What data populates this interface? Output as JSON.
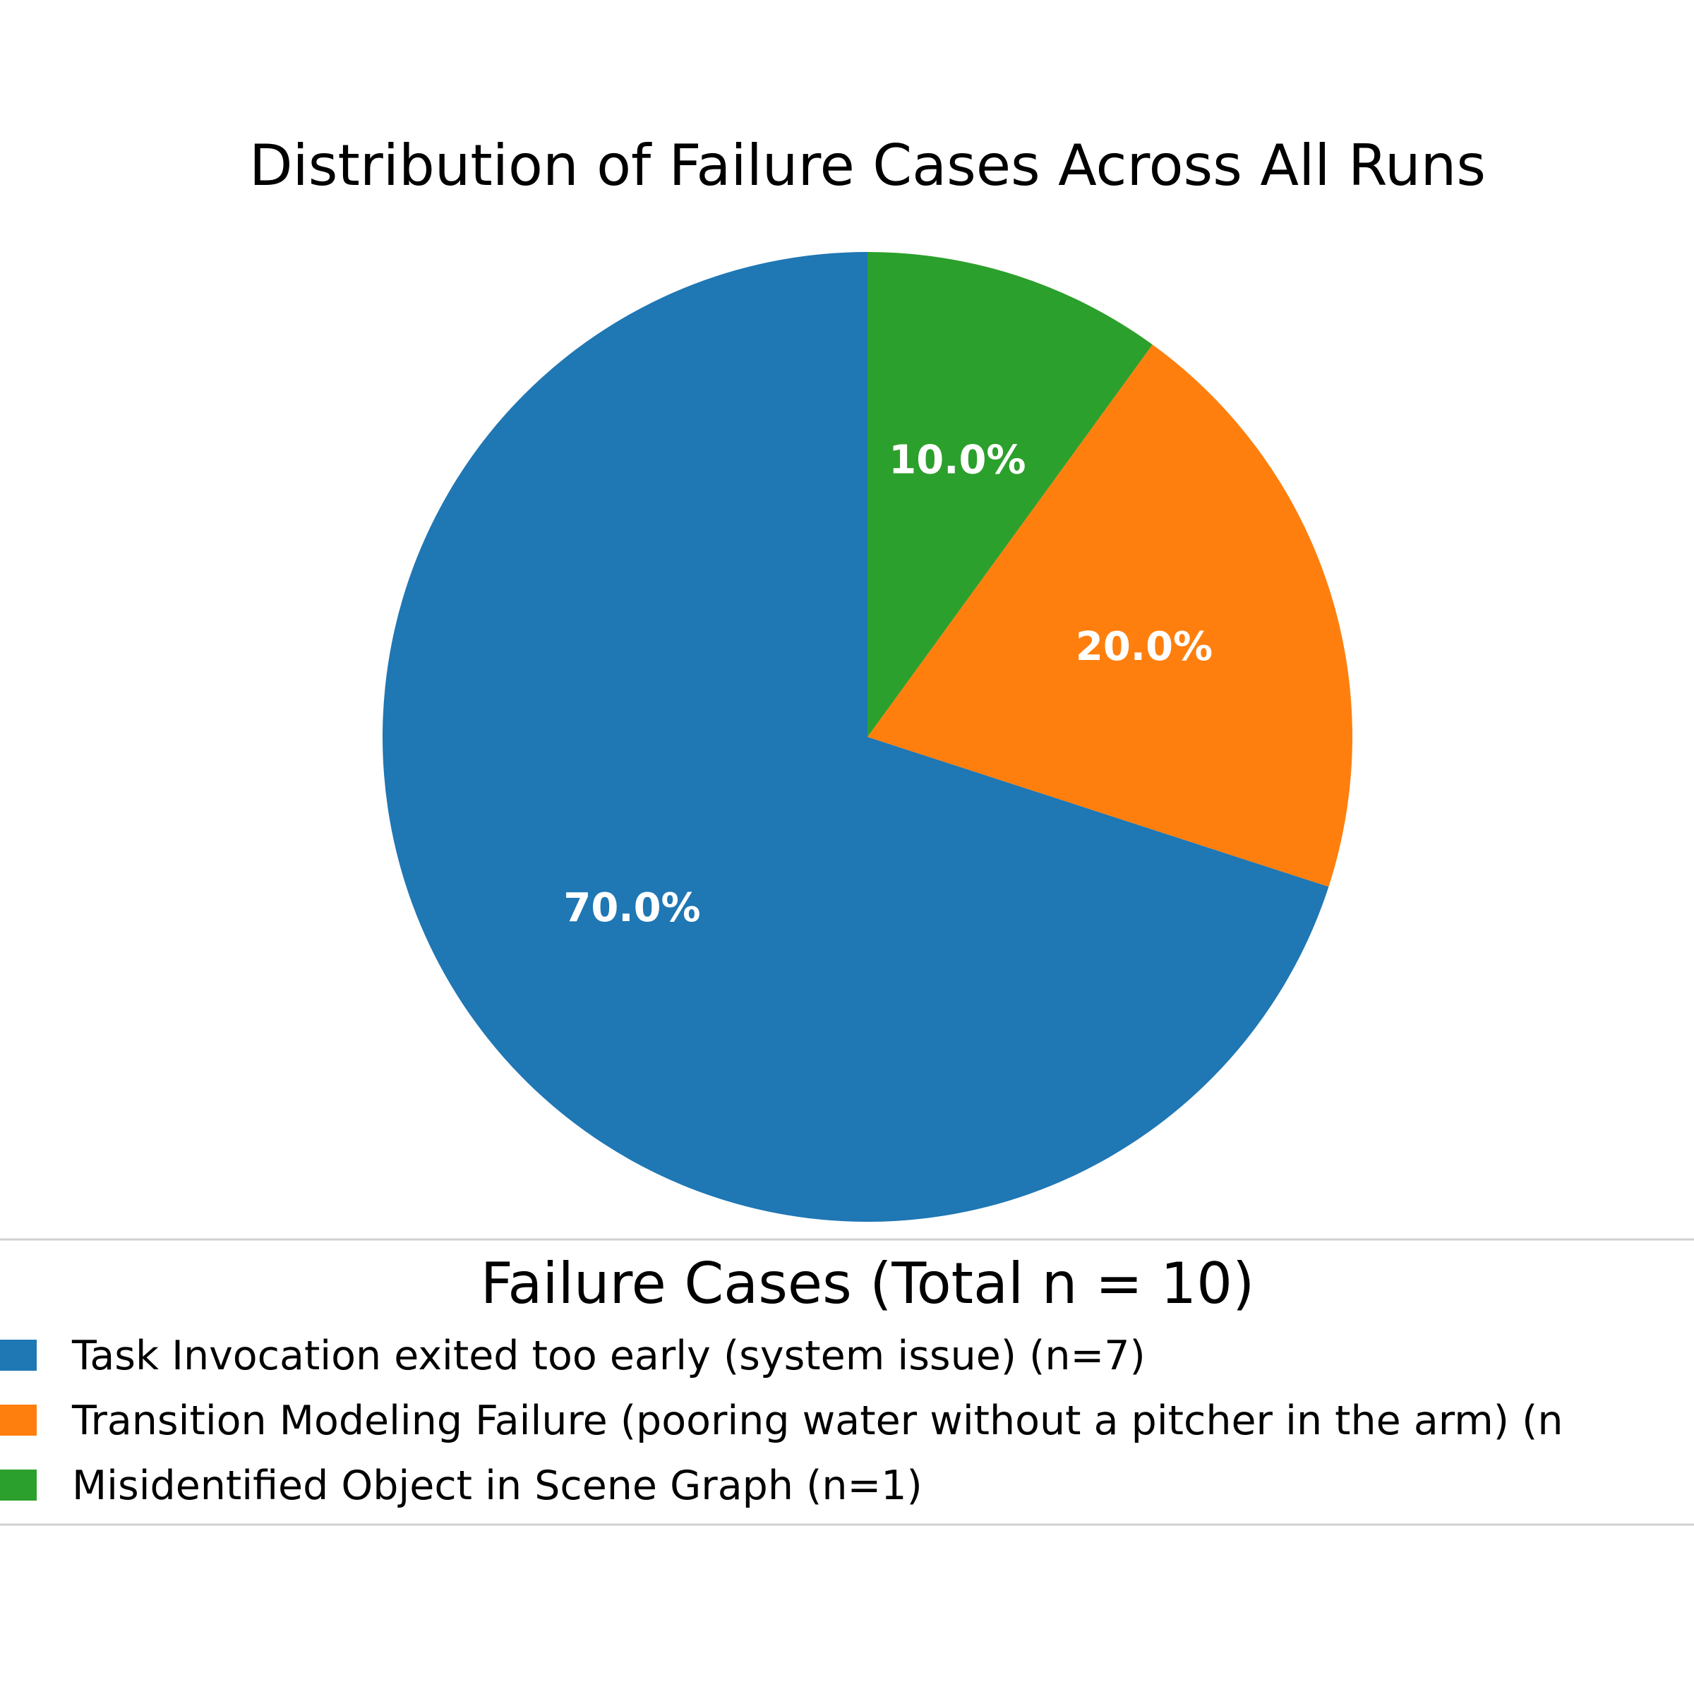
{
  "chart_data": {
    "type": "pie",
    "title": "Distribution of Failure Cases Across All Runs",
    "slices": [
      {
        "label": "Task Invocation exited too early (system issue) (n=7)",
        "value": 7,
        "percent_label": "70.0%",
        "color": "#1f77b4"
      },
      {
        "label": "Transition Modeling Failure (pooring water without a pitcher in the arm) (n",
        "value": 2,
        "percent_label": "20.0%",
        "color": "#ff7f0e"
      },
      {
        "label": "Misidentified Object in Scene Graph (n=1)",
        "value": 1,
        "percent_label": "10.0%",
        "color": "#2ca02c"
      }
    ],
    "start_angle_deg": 90,
    "direction": "counterclockwise",
    "legend": {
      "title": "Failure Cases (Total n = 10)",
      "placement": "bottom-center"
    }
  }
}
